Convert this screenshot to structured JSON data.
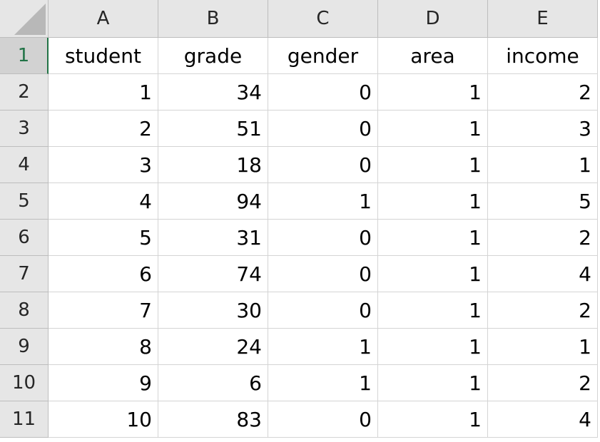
{
  "corner": {
    "icon": "select-all-triangle-icon"
  },
  "columns": [
    "A",
    "B",
    "C",
    "D",
    "E"
  ],
  "rows": [
    {
      "num": "1",
      "cells": [
        "student",
        "grade",
        "gender",
        "area",
        "income"
      ]
    },
    {
      "num": "2",
      "cells": [
        "1",
        "34",
        "0",
        "1",
        "2"
      ]
    },
    {
      "num": "3",
      "cells": [
        "2",
        "51",
        "0",
        "1",
        "3"
      ]
    },
    {
      "num": "4",
      "cells": [
        "3",
        "18",
        "0",
        "1",
        "1"
      ]
    },
    {
      "num": "5",
      "cells": [
        "4",
        "94",
        "1",
        "1",
        "5"
      ]
    },
    {
      "num": "6",
      "cells": [
        "5",
        "31",
        "0",
        "1",
        "2"
      ]
    },
    {
      "num": "7",
      "cells": [
        "6",
        "74",
        "0",
        "1",
        "4"
      ]
    },
    {
      "num": "8",
      "cells": [
        "7",
        "30",
        "0",
        "1",
        "2"
      ]
    },
    {
      "num": "9",
      "cells": [
        "8",
        "24",
        "1",
        "1",
        "1"
      ]
    },
    {
      "num": "10",
      "cells": [
        "9",
        "6",
        "1",
        "1",
        "2"
      ]
    },
    {
      "num": "11",
      "cells": [
        "10",
        "83",
        "0",
        "1",
        "4"
      ]
    }
  ],
  "selected_row": "1",
  "colors": {
    "header_bg": "#e6e6e6",
    "selected_header_bg": "#d2d2d2",
    "selection_accent": "#217346",
    "gridline": "#d4d4d4"
  }
}
